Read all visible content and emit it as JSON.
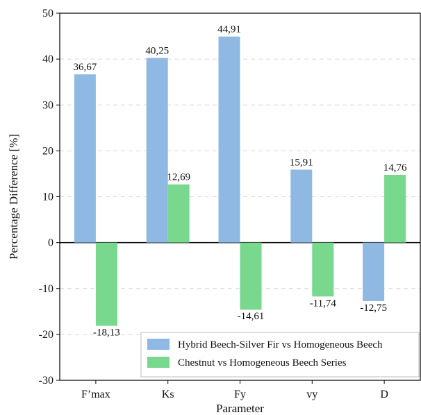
{
  "chart_data": {
    "type": "bar",
    "title": "",
    "xlabel": "Parameter",
    "ylabel": "Percentage Difference [%]",
    "ylim": [
      -30,
      50
    ],
    "yticks": [
      -30,
      -20,
      -10,
      0,
      10,
      20,
      30,
      40,
      50
    ],
    "grid": "horizontal dashed",
    "legend_position": "bottom-right",
    "categories": [
      "F’max",
      "Ks",
      "Fy",
      "vy",
      "D"
    ],
    "series": [
      {
        "name": "Hybrid Beech-Silver Fir vs Homogeneous Beech",
        "color": "#8fb8e2",
        "values": [
          36.67,
          40.25,
          44.91,
          15.91,
          -12.75
        ],
        "labels": [
          "36,67",
          "40,25",
          "44,91",
          "15,91",
          "-12,75"
        ]
      },
      {
        "name": "Chestnut vs Homogeneous Beech Series",
        "color": "#77d88e",
        "values": [
          -18.13,
          12.69,
          -14.61,
          -11.74,
          14.76
        ],
        "labels": [
          "-18,13",
          "12,69",
          "-14,61",
          "-11,74",
          "14,76"
        ]
      }
    ]
  }
}
